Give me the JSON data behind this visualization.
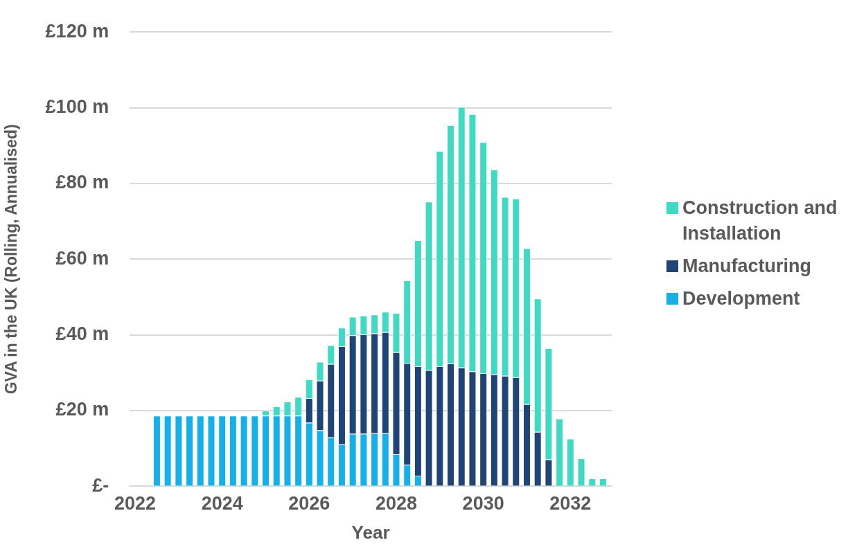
{
  "chart_data": {
    "type": "bar",
    "stacked": true,
    "xlabel": "Year",
    "ylabel": "GVA in the UK (Rolling, Annualised)",
    "x": [
      2022.5,
      2022.75,
      2023,
      2023.25,
      2023.5,
      2023.75,
      2024,
      2024.25,
      2024.5,
      2024.75,
      2025,
      2025.25,
      2025.5,
      2025.75,
      2026,
      2026.25,
      2026.5,
      2026.75,
      2027,
      2027.25,
      2027.5,
      2027.75,
      2028,
      2028.25,
      2028.5,
      2028.75,
      2029,
      2029.25,
      2029.5,
      2029.75,
      2030,
      2030.25,
      2030.5,
      2030.75,
      2031,
      2031.25,
      2031.5,
      2031.75,
      2032,
      2032.25,
      2032.5,
      2032.75
    ],
    "series": [
      {
        "name": "Development",
        "color": "#16b0e8",
        "values": [
          18.7,
          18.7,
          18.7,
          18.7,
          18.7,
          18.7,
          18.7,
          18.7,
          18.7,
          18.7,
          18.7,
          18.7,
          18.7,
          18.7,
          16.8,
          14.8,
          12.9,
          11.1,
          13.9,
          13.9,
          14.0,
          14.0,
          8.5,
          5.7,
          2.8,
          null,
          null,
          null,
          null,
          null,
          null,
          null,
          null,
          null,
          null,
          null,
          null,
          null,
          null,
          null,
          null,
          null
        ]
      },
      {
        "name": "Manufacturing",
        "color": "#1f4476",
        "values": [
          null,
          null,
          null,
          null,
          null,
          null,
          null,
          null,
          null,
          null,
          null,
          null,
          null,
          null,
          6.5,
          13.1,
          19.4,
          25.9,
          26.0,
          26.2,
          26.4,
          26.7,
          26.9,
          26.9,
          28.9,
          30.7,
          31.7,
          32.5,
          31.4,
          30.4,
          29.9,
          29.6,
          29.2,
          28.8,
          21.7,
          14.4,
          7.1,
          null,
          null,
          null,
          null,
          null
        ]
      },
      {
        "name": "Construction and Installation",
        "color": "#40d9c4",
        "values": [
          null,
          null,
          null,
          null,
          null,
          null,
          null,
          null,
          null,
          null,
          1.3,
          2.4,
          3.7,
          4.9,
          5.0,
          5.0,
          5.0,
          4.9,
          4.9,
          5.0,
          5.0,
          5.4,
          10.4,
          21.8,
          33.3,
          44.5,
          56.9,
          62.9,
          68.8,
          67.9,
          61.0,
          54.1,
          47.2,
          47.2,
          41.2,
          35.2,
          29.4,
          17.9,
          12.6,
          7.4,
          2.1,
          2.1
        ]
      }
    ],
    "xlim": [
      2021.875,
      2032.95
    ],
    "xticks": [
      2022,
      2024,
      2026,
      2028,
      2030,
      2032
    ],
    "ylim": [
      0,
      120
    ],
    "yticks": [
      {
        "value": 0,
        "label": "£-"
      },
      {
        "value": 20,
        "label": "£20 m"
      },
      {
        "value": 40,
        "label": "£40 m"
      },
      {
        "value": 60,
        "label": "£60 m"
      },
      {
        "value": 80,
        "label": "£80 m"
      },
      {
        "value": 100,
        "label": "£100 m"
      },
      {
        "value": 120,
        "label": "£120 m"
      }
    ],
    "grid": "y",
    "legend": "right"
  }
}
